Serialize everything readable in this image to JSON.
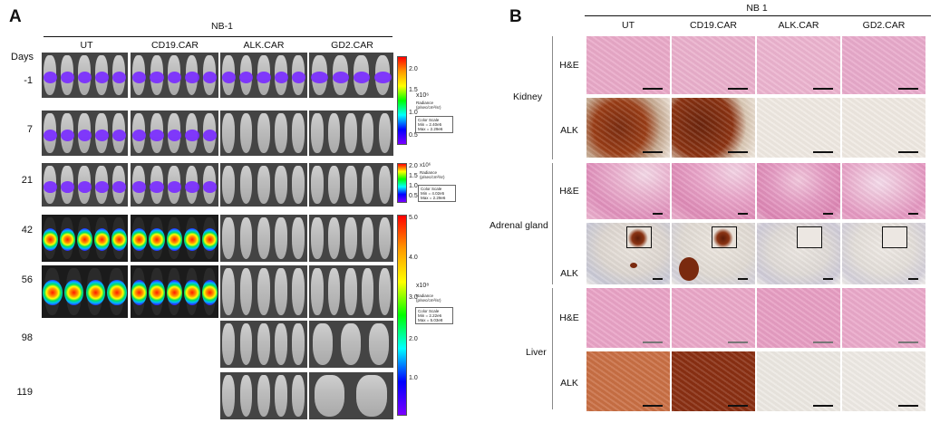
{
  "panel_a": {
    "letter": "A",
    "header": "NB-1",
    "groups": [
      "UT",
      "CD19.CAR",
      "ALK.CAR",
      "GD2.CAR"
    ],
    "days_label": "Days",
    "days": [
      "-1",
      "7",
      "21",
      "42",
      "56",
      "98",
      "119"
    ],
    "scales": [
      {
        "exp": "x10⁶",
        "ticks": [
          "2.0",
          "1.5",
          "1.0",
          "0.5"
        ],
        "unit": "Radiance (p/sec/cm²/sr)",
        "legend": [
          "Color Scale",
          "Min = 2.40e5",
          "Max = 2.29e6"
        ]
      },
      {
        "exp": "x10⁶",
        "ticks": [
          "2.0",
          "1.5",
          "1.0",
          "0.5"
        ],
        "unit": "Radiance (p/sec/cm²/sr)",
        "legend": [
          "Color Scale",
          "Min = 4.02e5",
          "Max = 2.29e6"
        ]
      },
      {
        "exp": "x10⁸",
        "ticks": [
          "5.0",
          "4.0",
          "3.0",
          "2.0",
          "1.0"
        ],
        "unit": "Radiance (p/sec/cm²/sr)",
        "legend": [
          "Color Scale",
          "Min = 2.22e6",
          "Max = 5.03e8"
        ]
      }
    ]
  },
  "panel_b": {
    "letter": "B",
    "header": "NB 1",
    "groups": [
      "UT",
      "CD19.CAR",
      "ALK.CAR",
      "GD2.CAR"
    ],
    "organs": [
      "Kidney",
      "Adrenal gland",
      "Liver"
    ],
    "stains": [
      "H&E",
      "ALK",
      "H&E",
      "ALK",
      "H&E",
      "ALK"
    ]
  }
}
